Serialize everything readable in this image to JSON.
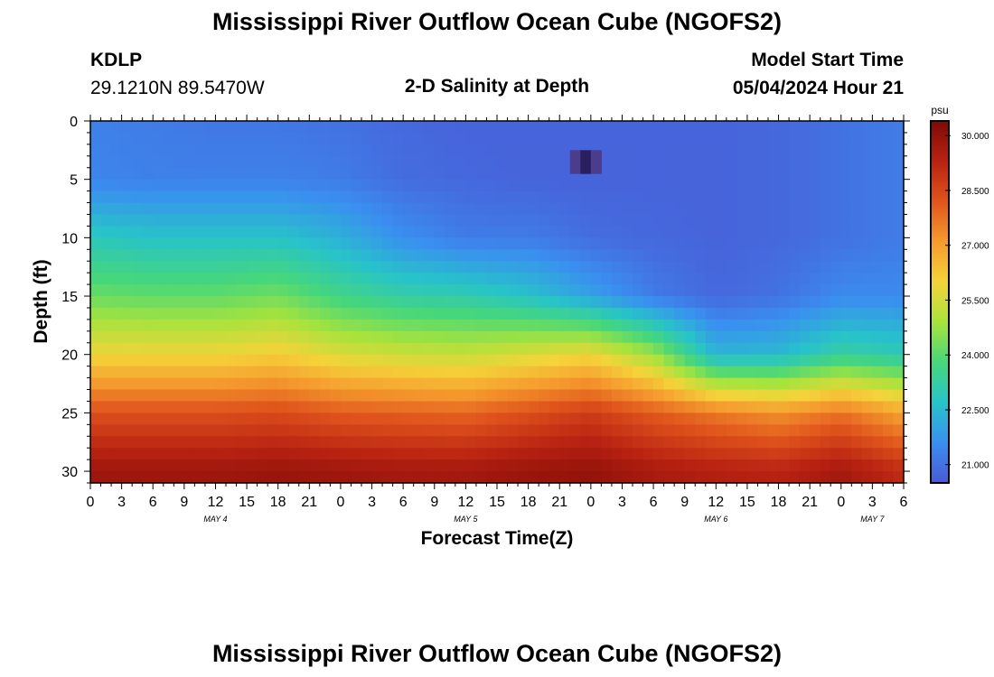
{
  "title": "Mississippi River Outflow Ocean Cube (NGOFS2)",
  "station": {
    "id": "KDLP",
    "coords": "29.1210N  89.5470W"
  },
  "subtitle": "2-D Salinity at Depth",
  "model_start": {
    "label": "Model Start Time",
    "value": "05/04/2024 Hour 21"
  },
  "footer_title": "Mississippi River Outflow Ocean Cube (NGOFS2)",
  "colors": {
    "scale": [
      "#4a5ad6",
      "#3a8ff0",
      "#27c3c9",
      "#47d77a",
      "#a8e33c",
      "#f5d33a",
      "#f59a2e",
      "#e0541c",
      "#b82212",
      "#7f0a05"
    ],
    "cell_deep_anomaly": "#2a1f5e",
    "cell_anomaly": "#4c3c8c"
  },
  "chart_data": {
    "type": "heatmap",
    "title": "2-D Salinity at Depth",
    "xlabel": "Forecast Time(Z)",
    "ylabel": "Depth (ft)",
    "colorbar_unit": "psu",
    "x_range": [
      0,
      78
    ],
    "y_range": [
      0,
      31
    ],
    "y_inverted": true,
    "y_ticks": [
      0,
      5,
      10,
      15,
      20,
      25,
      30
    ],
    "x_tick_hours": [
      0,
      3,
      6,
      9,
      12,
      15,
      18,
      21,
      24,
      27,
      30,
      33,
      36,
      39,
      42,
      45,
      48,
      51,
      54,
      57,
      60,
      63,
      66,
      69,
      72,
      75,
      78
    ],
    "x_tick_labels": [
      "0",
      "3",
      "6",
      "9",
      "12",
      "15",
      "18",
      "21",
      "0",
      "3",
      "6",
      "9",
      "12",
      "15",
      "18",
      "21",
      "0",
      "3",
      "6",
      "9",
      "12",
      "15",
      "18",
      "21",
      "0",
      "3",
      "6"
    ],
    "date_labels": [
      {
        "hour": 12,
        "label": "MAY 4"
      },
      {
        "hour": 36,
        "label": "MAY 5"
      },
      {
        "hour": 60,
        "label": "MAY 6"
      },
      {
        "hour": 75,
        "label": "MAY 7"
      }
    ],
    "value_range": [
      20.5,
      30.4
    ],
    "colorbar_ticks": [
      "30.000",
      "28.500",
      "27.000",
      "25.500",
      "24.000",
      "22.500",
      "21.000"
    ],
    "colorbar_tick_values": [
      30.0,
      28.5,
      27.0,
      25.5,
      24.0,
      22.5,
      21.0
    ],
    "profile_hours": [
      0,
      6,
      12,
      18,
      24,
      30,
      36,
      42,
      48,
      54,
      60,
      66,
      72,
      78
    ],
    "profile_depths": [
      0,
      5,
      10,
      15,
      20,
      25,
      30
    ],
    "profile_values": [
      [
        21.3,
        21.4,
        22.9,
        24.2,
        25.9,
        28.3,
        29.8
      ],
      [
        21.2,
        21.3,
        22.7,
        24.1,
        25.9,
        28.3,
        29.8
      ],
      [
        21.1,
        21.3,
        22.7,
        24.1,
        25.9,
        28.3,
        29.8
      ],
      [
        21.1,
        21.3,
        22.7,
        24.3,
        26.1,
        28.4,
        29.9
      ],
      [
        21.0,
        21.2,
        22.3,
        23.6,
        25.6,
        28.1,
        29.8
      ],
      [
        20.8,
        20.9,
        21.6,
        23.2,
        25.4,
        28.0,
        29.7
      ],
      [
        20.7,
        20.8,
        21.2,
        23.1,
        25.3,
        27.9,
        29.7
      ],
      [
        20.7,
        20.7,
        21.2,
        22.7,
        25.6,
        28.3,
        29.9
      ],
      [
        20.7,
        20.7,
        20.9,
        22.0,
        25.9,
        28.7,
        30.0
      ],
      [
        20.7,
        20.7,
        20.8,
        21.2,
        24.8,
        28.1,
        29.6
      ],
      [
        20.7,
        20.7,
        20.7,
        20.8,
        22.4,
        27.6,
        29.4
      ],
      [
        20.8,
        20.8,
        20.8,
        21.0,
        22.5,
        27.2,
        29.3
      ],
      [
        21.0,
        21.0,
        21.0,
        21.5,
        23.3,
        27.7,
        29.7
      ],
      [
        21.2,
        21.2,
        21.2,
        21.5,
        23.0,
        26.9,
        29.1
      ]
    ]
  }
}
